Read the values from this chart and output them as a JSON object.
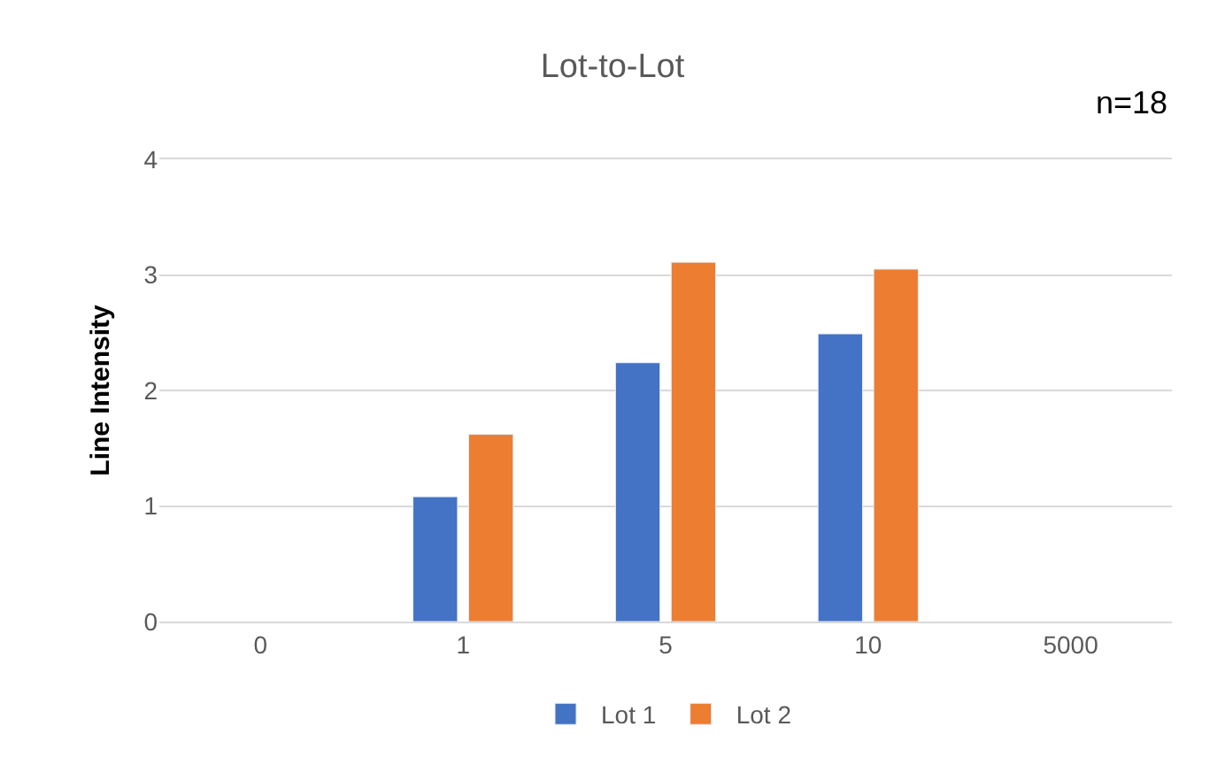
{
  "chart_data": {
    "type": "bar",
    "title": "Lot-to-Lot",
    "ylabel": "Line Intensity",
    "annotations": [
      "n=18"
    ],
    "categories": [
      "0",
      "1",
      "5",
      "10",
      "5000"
    ],
    "series": [
      {
        "name": "Lot 1",
        "color": "#4472c4",
        "values": [
          null,
          1.08,
          2.24,
          2.49,
          null
        ]
      },
      {
        "name": "Lot 2",
        "color": "#ed7d31",
        "values": [
          null,
          1.62,
          3.11,
          3.05,
          null
        ]
      }
    ],
    "ylim": [
      0,
      4
    ],
    "yticks": [
      0,
      1,
      2,
      3,
      4
    ],
    "grid": "y",
    "legend": "bottom"
  }
}
